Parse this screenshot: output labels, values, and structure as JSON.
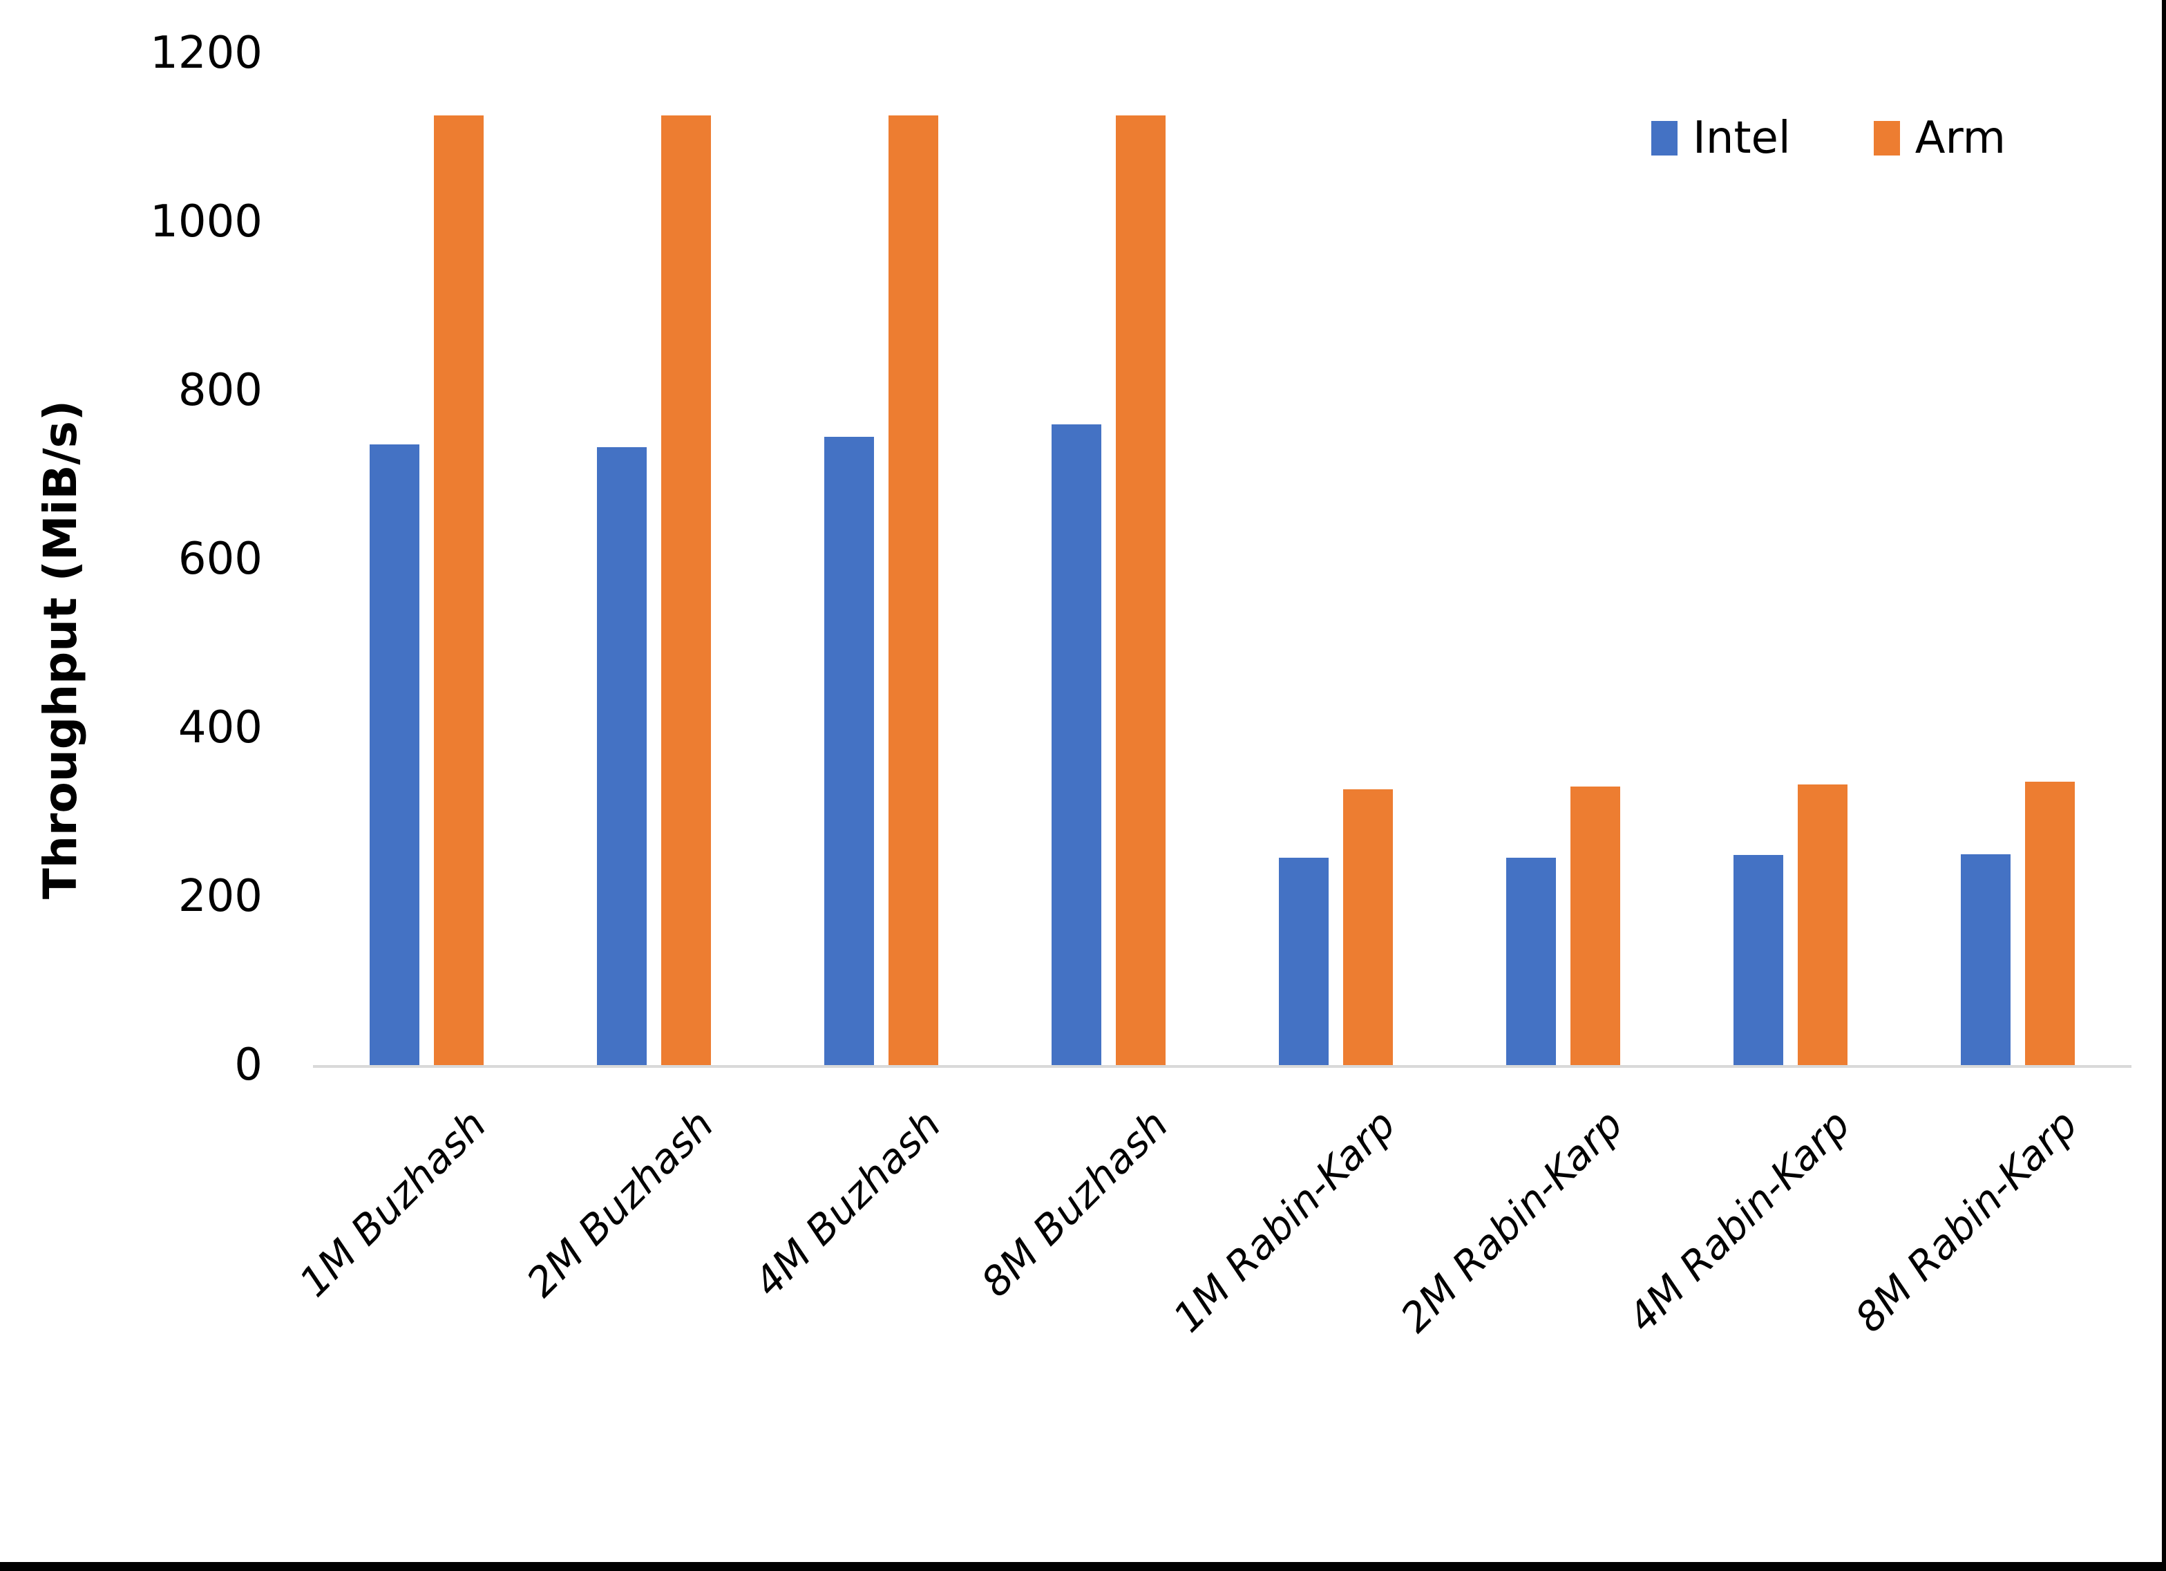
{
  "chart_data": {
    "type": "bar",
    "title": "",
    "xlabel": "",
    "ylabel": "Throughput (MiB/s)",
    "ylim": [
      0,
      1200
    ],
    "yticks": [
      0,
      200,
      400,
      600,
      800,
      1000,
      1200
    ],
    "grid": false,
    "legend_position": "top-right",
    "categories": [
      "1M Buzhash",
      "2M Buzhash",
      "4M Buzhash",
      "8M Buzhash",
      "1M Rabin-Karp",
      "2M Rabin-Karp",
      "4M Rabin-Karp",
      "8M Rabin-Karp"
    ],
    "series": [
      {
        "name": "Intel",
        "color": "#4472C4",
        "values": [
          736,
          733,
          745,
          760,
          246,
          246,
          249,
          250
        ]
      },
      {
        "name": "Arm",
        "color": "#ED7D31",
        "values": [
          1126,
          1126,
          1126,
          1126,
          327,
          330,
          333,
          336
        ]
      }
    ]
  },
  "colors": {
    "axis_line": "#D9D9D9",
    "text": "#000000",
    "background": "#FFFFFF",
    "page_border": "#000000"
  }
}
